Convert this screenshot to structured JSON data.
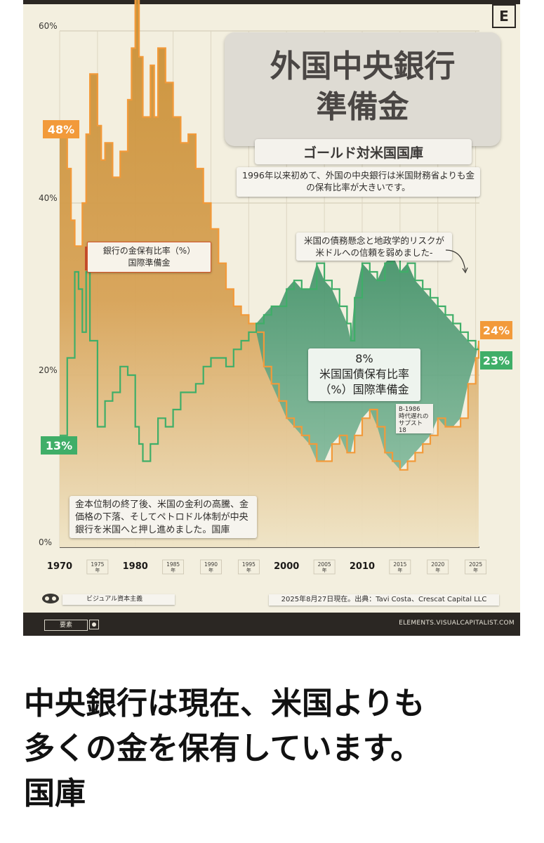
{
  "header": {
    "title_line1": "外国中央銀行",
    "title_line2": "準備金",
    "subtitle": "ゴールド対米国国庫",
    "logo_letter": "E"
  },
  "annotations": {
    "top_note": "1996年以来初めて、外国の中央銀行は米国財務省よりも金の保有比率が大きいです。",
    "risk_note": "米国の債務懸念と地政学的リスクが米ドルへの信頼を弱めました-",
    "gold_legend_line1": "銀行の金保有比率（%）",
    "gold_legend_line2": "国際準備金",
    "green_value": "8%",
    "green_label_line1": "米国国債保有比率",
    "green_label_line2": "（%）国際準備金",
    "small_note_line1": "B-1986",
    "small_note_line2": "時代遅れの",
    "small_note_line3": "サプスト",
    "small_note_line4": "18",
    "bottom_note": "金本位制の終了後、米国の金利の高騰、金価格の下落、そしてペトロドル体制が中央銀行を米国へと押し進めました。国庫"
  },
  "badges": {
    "gold_start": "48%",
    "green_start": "13%",
    "gold_end": "24%",
    "green_end": "23%"
  },
  "footer": {
    "brand": "ビジュアル資本主義",
    "source": "2025年8月27日現在。出典：Tavi Costa、Crescat Capital LLC",
    "site": "ELEMENTS.VISUALCAPITALIST.COM",
    "left_label": "要素"
  },
  "headline": {
    "line1": "中央銀行は現在、米国よりも",
    "line2": "多くの金を保有しています。",
    "line3": "国庫"
  },
  "colors": {
    "gold": "#f29a3a",
    "green": "#3fae68",
    "background": "#f3efdf",
    "dark": "#2b2723"
  },
  "chart_data": {
    "type": "line",
    "title": "外国中央銀行 準備金",
    "subtitle": "ゴールド対米国国庫",
    "y_ticks": [
      "60%",
      "40%",
      "20%",
      "0%"
    ],
    "y_tick_values": [
      60,
      40,
      20,
      0
    ],
    "ylim": [
      0,
      60
    ],
    "xlim": [
      1970,
      2025.5
    ],
    "x_ticks_major": [
      {
        "value": 1970,
        "label": "1970"
      },
      {
        "value": 1980,
        "label": "1980"
      },
      {
        "value": 2000,
        "label": "2000"
      },
      {
        "value": 2010,
        "label": "2010"
      }
    ],
    "x_ticks_minor": [
      {
        "value": 1975,
        "line1": "1975",
        "line2": "年"
      },
      {
        "value": 1985,
        "line1": "1985",
        "line2": "年"
      },
      {
        "value": 1990,
        "line1": "1990",
        "line2": "年"
      },
      {
        "value": 1995,
        "line1": "1995",
        "line2": "年"
      },
      {
        "value": 2005,
        "line1": "2005",
        "line2": "年"
      },
      {
        "value": 2015,
        "line1": "2015",
        "line2": "年"
      },
      {
        "value": 2020,
        "line1": "2020",
        "line2": "年"
      },
      {
        "value": 2025,
        "line1": "2025",
        "line2": "年"
      }
    ],
    "series": [
      {
        "name": "銀行の金保有比率（%）国際準備金",
        "color": "#f29a3a",
        "x": [
          1970,
          1971,
          1971.5,
          1972,
          1973,
          1973.5,
          1974,
          1975,
          1975.5,
          1976,
          1977,
          1978,
          1979,
          1979.5,
          1980,
          1980.5,
          1981,
          1982,
          1982.5,
          1983,
          1984,
          1985,
          1986,
          1987,
          1988,
          1989,
          1990,
          1991,
          1992,
          1993,
          1994,
          1995,
          1996,
          1997,
          1998,
          1999,
          2000,
          2001,
          2002,
          2003,
          2004,
          2005,
          2006,
          2007,
          2008,
          2009,
          2010,
          2011,
          2012,
          2013,
          2014,
          2015,
          2016,
          2017,
          2018,
          2019,
          2020,
          2021,
          2022,
          2023,
          2024,
          2025,
          2025.4
        ],
        "values": [
          48,
          44,
          38,
          35,
          40,
          48,
          55,
          49,
          45,
          47,
          43,
          46,
          52,
          58,
          64,
          57,
          50,
          56,
          50,
          58,
          54,
          50,
          47,
          48,
          44,
          40,
          37,
          33,
          30,
          28,
          27,
          26,
          25,
          21,
          19,
          17,
          15,
          14,
          13,
          12,
          10,
          10,
          12,
          13,
          11,
          13,
          15,
          16,
          14,
          11,
          10,
          9,
          10,
          11,
          12,
          13,
          15,
          14,
          14,
          15,
          19,
          22,
          24
        ]
      },
      {
        "name": "米国国債保有比率（%）国際準備金",
        "color": "#3fae68",
        "x": [
          1970,
          1971,
          1972,
          1972.5,
          1973,
          1973.5,
          1974,
          1975,
          1976,
          1977,
          1978,
          1979,
          1980,
          1980.5,
          1981,
          1982,
          1983,
          1984,
          1985,
          1986,
          1987,
          1988,
          1989,
          1990,
          1991,
          1992,
          1993,
          1994,
          1995,
          1996,
          1997,
          1998,
          1999,
          2000,
          2001,
          2002,
          2003,
          2004,
          2005,
          2006,
          2007,
          2008,
          2008.5,
          2009,
          2010,
          2011,
          2012,
          2013,
          2014,
          2015,
          2016,
          2017,
          2018,
          2019,
          2020,
          2021,
          2022,
          2023,
          2024,
          2025,
          2025.4
        ],
        "values": [
          13,
          22,
          32,
          30,
          25,
          32,
          24,
          14,
          17,
          18,
          21,
          20,
          14,
          12,
          10,
          12,
          15,
          14,
          16,
          18,
          18,
          19,
          21,
          22,
          22,
          21,
          23,
          24,
          25,
          26,
          27,
          28,
          28,
          30,
          31,
          30,
          30,
          33,
          31,
          30,
          28,
          26,
          24,
          29,
          33,
          32,
          31,
          33,
          34,
          32,
          33,
          31,
          30,
          29,
          28,
          27,
          26,
          25,
          24,
          23,
          23
        ]
      }
    ],
    "grid": true,
    "legend": "annotations"
  }
}
